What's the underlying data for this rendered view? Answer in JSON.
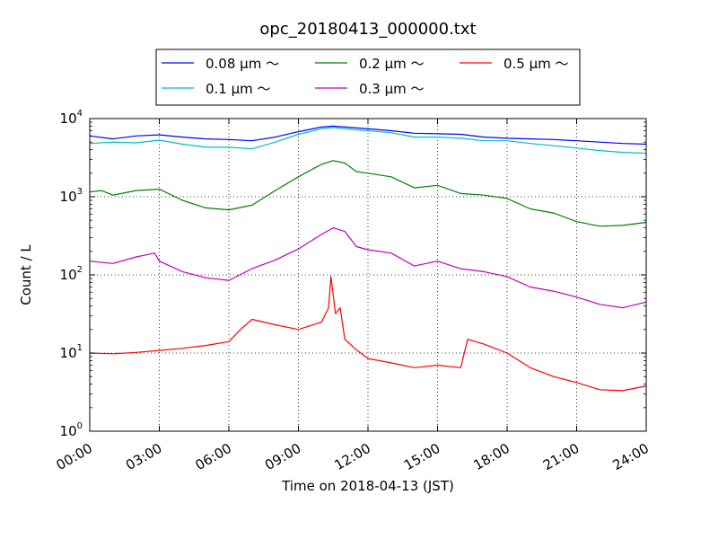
{
  "chart_data": {
    "type": "line",
    "title": "opc_20180413_000000.txt",
    "xlabel": "Time on 2018-04-13 (JST)",
    "ylabel": "Count / L",
    "yscale": "log",
    "xlim": [
      0,
      24
    ],
    "ylim": [
      1,
      10000
    ],
    "grid": true,
    "legend_position": "top",
    "x_ticks": [
      {
        "value": 0,
        "label": "00:00"
      },
      {
        "value": 3,
        "label": "03:00"
      },
      {
        "value": 6,
        "label": "06:00"
      },
      {
        "value": 9,
        "label": "09:00"
      },
      {
        "value": 12,
        "label": "12:00"
      },
      {
        "value": 15,
        "label": "15:00"
      },
      {
        "value": 18,
        "label": "18:00"
      },
      {
        "value": 21,
        "label": "21:00"
      },
      {
        "value": 24,
        "label": "24:00"
      }
    ],
    "y_ticks": [
      {
        "value": 1,
        "base": "10",
        "exp": "0"
      },
      {
        "value": 10,
        "base": "10",
        "exp": "1"
      },
      {
        "value": 100,
        "base": "10",
        "exp": "2"
      },
      {
        "value": 1000,
        "base": "10",
        "exp": "3"
      },
      {
        "value": 10000,
        "base": "10",
        "exp": "4"
      }
    ],
    "series": [
      {
        "name": "0.08 μm ～",
        "color": "#0000ff",
        "x": [
          0,
          1,
          2,
          3,
          4,
          5,
          6,
          7,
          8,
          9,
          10,
          10.5,
          11,
          12,
          13,
          14,
          15,
          16,
          17,
          18,
          19,
          20,
          21,
          22,
          23,
          24
        ],
        "y": [
          6000,
          5500,
          6000,
          6200,
          5800,
          5500,
          5400,
          5200,
          5800,
          6800,
          7800,
          8000,
          7800,
          7400,
          7000,
          6500,
          6400,
          6300,
          5800,
          5600,
          5500,
          5400,
          5200,
          5000,
          4800,
          4700
        ]
      },
      {
        "name": "0.1 μm ～",
        "color": "#00bfbf",
        "x": [
          0,
          1,
          2,
          3,
          4,
          5,
          6,
          7,
          8,
          9,
          10,
          10.5,
          11,
          12,
          13,
          14,
          15,
          16,
          17,
          18,
          19,
          20,
          21,
          22,
          23,
          24
        ],
        "y": [
          4800,
          5000,
          4900,
          5300,
          4700,
          4300,
          4300,
          4100,
          5000,
          6300,
          7400,
          7700,
          7400,
          7000,
          6600,
          5800,
          5800,
          5600,
          5200,
          5200,
          4800,
          4500,
          4200,
          3900,
          3700,
          3600
        ]
      },
      {
        "name": "0.2 μm ～",
        "color": "#008000",
        "x": [
          0,
          0.5,
          1,
          2,
          3,
          4,
          5,
          6,
          7,
          8,
          9,
          10,
          10.5,
          11,
          11.5,
          12,
          13,
          14,
          15,
          16,
          17,
          18,
          19,
          20,
          21,
          22,
          23,
          24
        ],
        "y": [
          1150,
          1200,
          1050,
          1200,
          1250,
          900,
          720,
          680,
          780,
          1200,
          1800,
          2600,
          2900,
          2700,
          2100,
          2000,
          1800,
          1300,
          1400,
          1100,
          1050,
          950,
          700,
          620,
          480,
          420,
          430,
          470
        ]
      },
      {
        "name": "0.3 μm ～",
        "color": "#bf00bf",
        "x": [
          0,
          1,
          2,
          2.8,
          3,
          4,
          5,
          6,
          7,
          8,
          9,
          10,
          10.5,
          11,
          11.5,
          12,
          13,
          14,
          15,
          16,
          17,
          18,
          19,
          20,
          21,
          22,
          23,
          24
        ],
        "y": [
          150,
          140,
          170,
          190,
          150,
          110,
          92,
          85,
          120,
          155,
          215,
          330,
          400,
          360,
          230,
          210,
          190,
          130,
          150,
          120,
          110,
          95,
          70,
          62,
          52,
          42,
          38,
          45
        ]
      },
      {
        "name": "0.5 μm ～",
        "color": "#ff0000",
        "x": [
          0,
          1,
          2,
          3,
          4,
          5,
          6,
          6.5,
          7,
          8,
          9,
          10,
          10.3,
          10.4,
          10.6,
          10.8,
          11,
          11.5,
          12,
          13,
          14,
          15,
          16,
          16.3,
          17,
          18,
          19,
          20,
          21,
          22,
          23,
          24
        ],
        "y": [
          10,
          9.8,
          10.2,
          10.8,
          11.5,
          12.5,
          14,
          20,
          27,
          23,
          20,
          25,
          38,
          95,
          32,
          38,
          15,
          11,
          8.5,
          7.5,
          6.5,
          7,
          6.5,
          15,
          13,
          10,
          6.5,
          5,
          4.2,
          3.4,
          3.3,
          3.8
        ]
      }
    ]
  }
}
